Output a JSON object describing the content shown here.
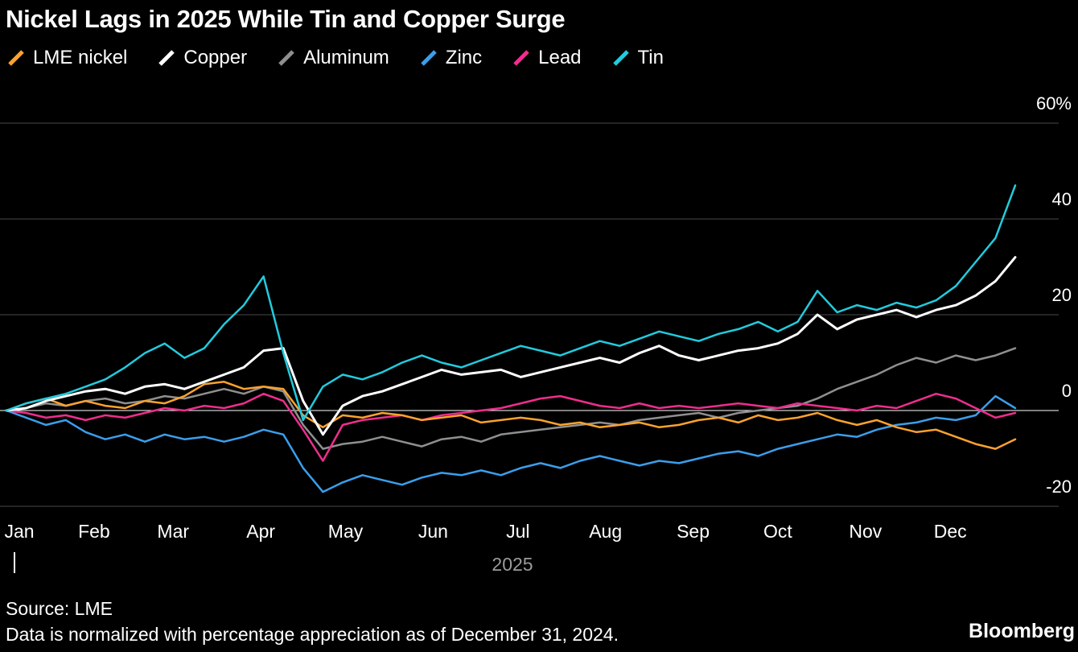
{
  "page": {
    "background": "#000000"
  },
  "chart_data": {
    "type": "line",
    "title": "Nickel Lags in 2025 While Tin and Copper Surge",
    "legend_position": "top",
    "grid": true,
    "ylim": [
      -24,
      62
    ],
    "x_axis": {
      "months": [
        "Jan",
        "Feb",
        "Mar",
        "Apr",
        "May",
        "Jun",
        "Jul",
        "Aug",
        "Sep",
        "Oct",
        "Nov",
        "Dec"
      ],
      "year_label": "2025"
    },
    "y_axis": {
      "unit": "percent",
      "ticks": [
        {
          "label": "60%",
          "value": 60
        },
        {
          "label": "40",
          "value": 40
        },
        {
          "label": "20",
          "value": 20
        },
        {
          "label": "0",
          "value": 0
        },
        {
          "label": "-20",
          "value": -20
        }
      ]
    },
    "series": [
      {
        "name": "LME nickel",
        "color": "#FBA22D",
        "values": [
          0,
          1.5,
          2.5,
          1,
          2,
          1,
          0.5,
          2,
          1.5,
          3,
          5.5,
          6,
          4.5,
          5,
          4.5,
          -1,
          -3.5,
          -1,
          -1.5,
          -0.5,
          -1,
          -2,
          -1.5,
          -1,
          -2.5,
          -2,
          -1.5,
          -2,
          -3,
          -2.5,
          -3.5,
          -3,
          -2.5,
          -3.5,
          -3,
          -2,
          -1.5,
          -2.5,
          -1,
          -2,
          -1.5,
          -0.5,
          -2,
          -3,
          -2,
          -3.5,
          -4.5,
          -4,
          -5.5,
          -7,
          -8,
          -6
        ]
      },
      {
        "name": "Copper",
        "color": "#FFFFFF",
        "values": [
          0,
          0.5,
          2,
          3,
          4,
          4.5,
          3.5,
          5,
          5.5,
          4.5,
          6,
          7.5,
          9,
          12.5,
          13,
          2,
          -5,
          1,
          3,
          4,
          5.5,
          7,
          8.5,
          7.5,
          8,
          8.5,
          7,
          8,
          9,
          10,
          11,
          10,
          12,
          13.5,
          11.5,
          10.5,
          11.5,
          12.5,
          13,
          14,
          16,
          20,
          17,
          19,
          20,
          21,
          19.5,
          21,
          22,
          24,
          27,
          32
        ]
      },
      {
        "name": "Aluminum",
        "color": "#8F8F8F",
        "values": [
          0,
          0.5,
          1.5,
          1,
          2,
          2.5,
          1.5,
          2,
          3,
          2.5,
          3.5,
          4.5,
          3.5,
          5,
          4,
          -3,
          -8,
          -7,
          -6.5,
          -5.5,
          -6.5,
          -7.5,
          -6,
          -5.5,
          -6.5,
          -5,
          -4.5,
          -4,
          -3.5,
          -3,
          -2.5,
          -3,
          -2,
          -1.5,
          -1,
          -0.5,
          -1.5,
          -0.5,
          0,
          0.5,
          1,
          2.5,
          4.5,
          6,
          7.5,
          9.5,
          11,
          10,
          11.5,
          10.5,
          11.5,
          13
        ]
      },
      {
        "name": "Zinc",
        "color": "#3B9EEB",
        "values": [
          0,
          -1.5,
          -3,
          -2,
          -4.5,
          -6,
          -5,
          -6.5,
          -5,
          -6,
          -5.5,
          -6.5,
          -5.5,
          -4,
          -5,
          -12,
          -17,
          -15,
          -13.5,
          -14.5,
          -15.5,
          -14,
          -13,
          -13.5,
          -12.5,
          -13.5,
          -12,
          -11,
          -12,
          -10.5,
          -9.5,
          -10.5,
          -11.5,
          -10.5,
          -11,
          -10,
          -9,
          -8.5,
          -9.5,
          -8,
          -7,
          -6,
          -5,
          -5.5,
          -4,
          -3,
          -2.5,
          -1.5,
          -2,
          -1,
          3,
          0.5
        ]
      },
      {
        "name": "Lead",
        "color": "#EE2E8D",
        "values": [
          0,
          -0.5,
          -1.5,
          -1,
          -2,
          -1,
          -1.5,
          -0.5,
          0.5,
          0,
          1,
          0.5,
          1.5,
          3.5,
          2,
          -4,
          -10.5,
          -3,
          -2,
          -1.5,
          -1,
          -2,
          -1,
          -0.5,
          0,
          0.5,
          1.5,
          2.5,
          3,
          2,
          1,
          0.5,
          1.5,
          0.5,
          1,
          0.5,
          1,
          1.5,
          1,
          0.5,
          1.5,
          1,
          0.5,
          0,
          1,
          0.5,
          2,
          3.5,
          2.5,
          0.5,
          -1.5,
          -0.5
        ]
      },
      {
        "name": "Tin",
        "color": "#22CBDE",
        "values": [
          0,
          1.5,
          2.5,
          3.5,
          5,
          6.5,
          9,
          12,
          14,
          11,
          13,
          18,
          22,
          28,
          12,
          -2,
          5,
          7.5,
          6.5,
          8,
          10,
          11.5,
          10,
          9,
          10.5,
          12,
          13.5,
          12.5,
          11.5,
          13,
          14.5,
          13.5,
          15,
          16.5,
          15.5,
          14.5,
          16,
          17,
          18.5,
          16.5,
          18.5,
          25,
          20.5,
          22,
          21,
          22.5,
          21.5,
          23,
          26,
          31,
          36,
          47
        ]
      }
    ]
  },
  "footer": {
    "source": "Source: LME",
    "note": "Data is normalized with percentage appreciation as of December 31, 2024.",
    "brand": "Bloomberg"
  }
}
